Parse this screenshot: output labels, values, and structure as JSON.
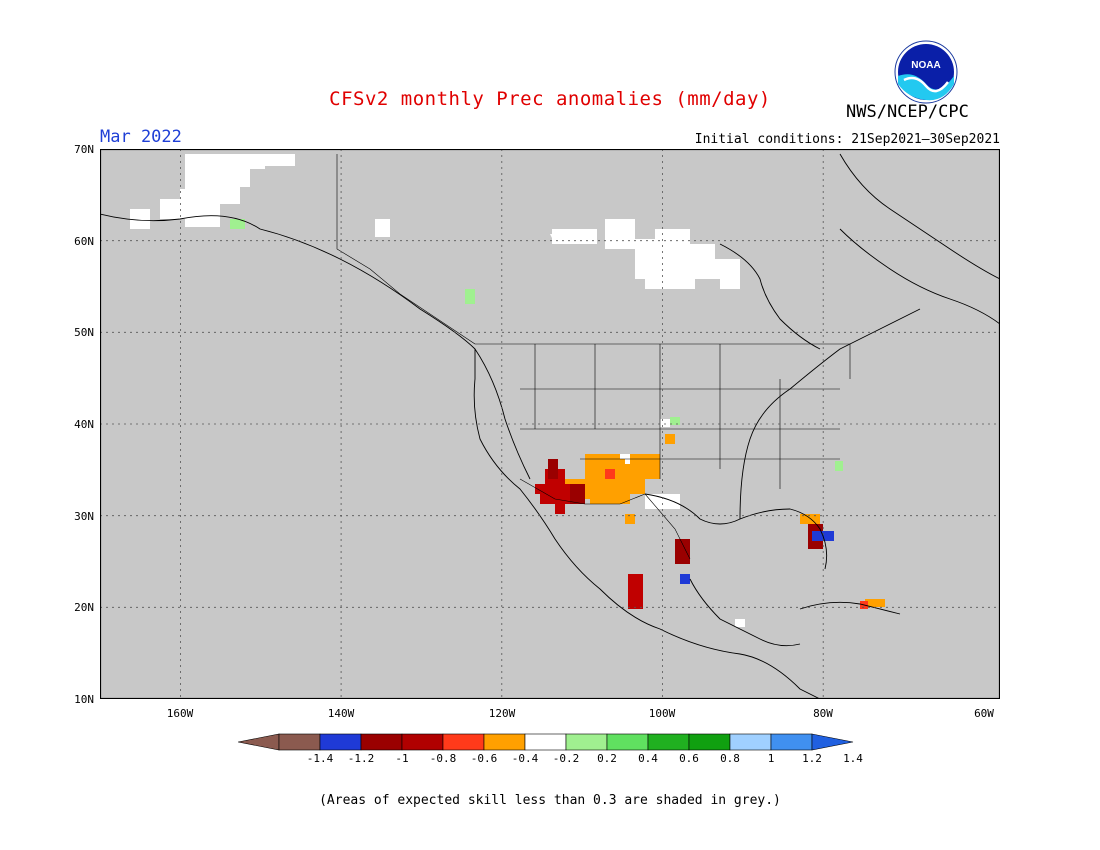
{
  "header": {
    "title": "CFSv2 monthly Prec anomalies (mm/day)",
    "month": "Mar 2022",
    "initial_conditions": "Initial conditions: 21Sep2021—30Sep2021",
    "org": "NWS/NCEP/CPC",
    "logo_text": "NOAA"
  },
  "map": {
    "lat_labels": [
      "70N",
      "60N",
      "50N",
      "40N",
      "30N",
      "20N",
      "10N"
    ],
    "lon_labels": [
      "160W",
      "140W",
      "120W",
      "100W",
      "80W",
      "60W"
    ],
    "extent": {
      "lon": [
        -172,
        -60
      ],
      "lat": [
        10,
        70
      ]
    },
    "background_color": "#c8c8c8"
  },
  "legend": {
    "labels": [
      "-1.4",
      "-1.2",
      "-1",
      "-0.8",
      "-0.6",
      "-0.4",
      "-0.2",
      "0.2",
      "0.4",
      "0.6",
      "0.8",
      "1",
      "1.2",
      "1.4"
    ],
    "colors": [
      "#8b5a4f",
      "#7a4a3e",
      "#1f3ad6",
      "#9a0000",
      "#c00000",
      "#ff3a1a",
      "#ffa000",
      "#ffffff",
      "#a0f090",
      "#60e060",
      "#20b020",
      "#10a010",
      "#a0d0ff",
      "#4090f0",
      "#2060e0"
    ]
  },
  "footnote": "(Areas of expected skill less than 0.3 are shaded in grey.)"
}
